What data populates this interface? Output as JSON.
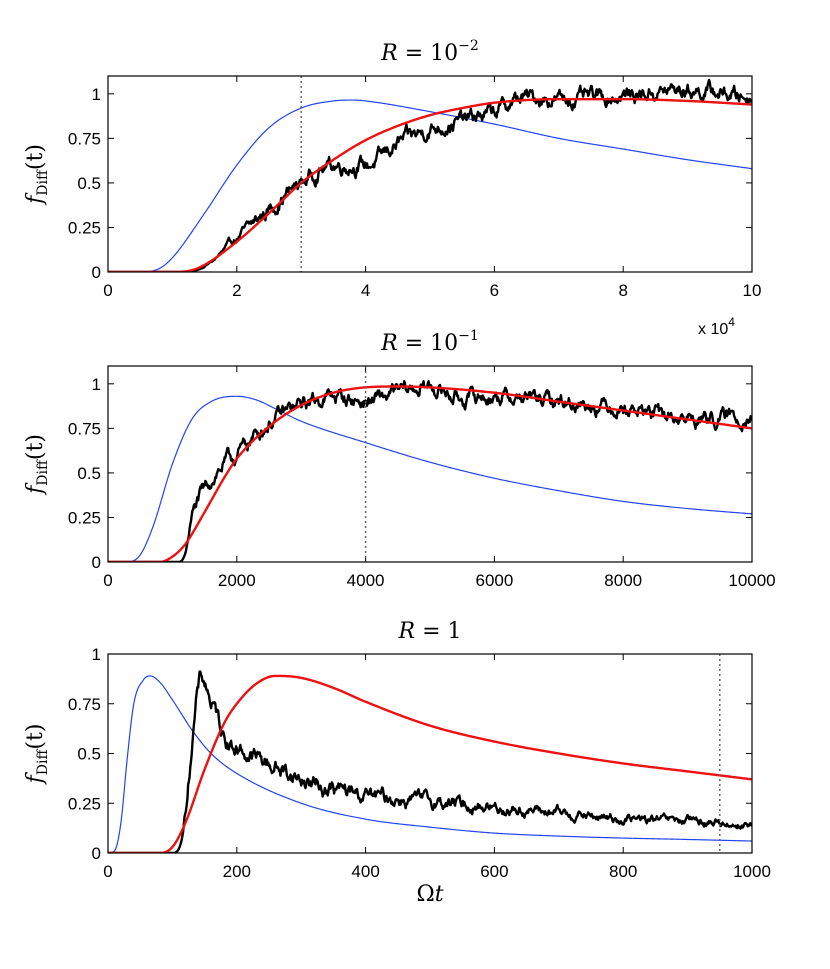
{
  "chart_data": [
    {
      "type": "line",
      "title": {
        "lhs": "R",
        "eq": " = 10",
        "sup": "−2"
      },
      "ylabel": {
        "f": "f",
        "sub": "Diff",
        "arg": "(t)"
      },
      "xlabel": "",
      "xlim": [
        0,
        100000
      ],
      "ylim": [
        0,
        1.1
      ],
      "xtick_values": [
        0,
        20000,
        40000,
        60000,
        80000,
        100000
      ],
      "xtick_labels": [
        "0",
        "2",
        "4",
        "6",
        "8",
        "10"
      ],
      "x_multiplier": {
        "prefix": "x 10",
        "sup": "4"
      },
      "ytick_values": [
        0,
        0.25,
        0.5,
        0.75,
        1
      ],
      "ytick_labels": [
        "0",
        "0.25",
        "0.5",
        "0.75",
        "1"
      ],
      "vline_x": 30000,
      "colors": {
        "simulation": "#000000",
        "model": "#ee1111",
        "reference": "#2244ee",
        "vline": "#666666"
      },
      "series": [
        {
          "name": "simulation",
          "kind": "noisy",
          "x": [
            0,
            12000,
            15000,
            20000,
            25000,
            30000,
            35000,
            40000,
            45000,
            50000,
            55000,
            60000,
            65000,
            70000,
            80000,
            90000,
            100000
          ],
          "y": [
            0,
            0,
            0.03,
            0.19,
            0.35,
            0.5,
            0.6,
            0.6,
            0.72,
            0.8,
            0.85,
            0.9,
            0.98,
            0.97,
            0.99,
            1.02,
            0.98
          ]
        },
        {
          "name": "model",
          "kind": "smooth",
          "x": [
            0,
            10000,
            13000,
            15000,
            20000,
            25000,
            30000,
            35000,
            40000,
            45000,
            50000,
            55000,
            60000,
            70000,
            80000,
            90000,
            100000
          ],
          "y": [
            0,
            0,
            0.01,
            0.04,
            0.17,
            0.33,
            0.5,
            0.63,
            0.74,
            0.82,
            0.88,
            0.92,
            0.95,
            0.97,
            0.97,
            0.96,
            0.94
          ]
        },
        {
          "name": "reference",
          "kind": "smooth",
          "x": [
            0,
            5000,
            8000,
            10000,
            15000,
            20000,
            25000,
            30000,
            35000,
            38000,
            40000,
            50000,
            60000,
            70000,
            80000,
            90000,
            100000
          ],
          "y": [
            0,
            0,
            0.02,
            0.08,
            0.33,
            0.6,
            0.81,
            0.92,
            0.96,
            0.965,
            0.96,
            0.9,
            0.83,
            0.75,
            0.69,
            0.63,
            0.58
          ]
        }
      ]
    },
    {
      "type": "line",
      "title": {
        "lhs": "R",
        "eq": " = 10",
        "sup": "−1"
      },
      "ylabel": {
        "f": "f",
        "sub": "Diff",
        "arg": "(t)"
      },
      "xlabel": "",
      "xlim": [
        0,
        10000
      ],
      "ylim": [
        0,
        1.1
      ],
      "xtick_values": [
        0,
        2000,
        4000,
        6000,
        8000,
        10000
      ],
      "xtick_labels": [
        "0",
        "2000",
        "4000",
        "6000",
        "8000",
        "10000"
      ],
      "ytick_values": [
        0,
        0.25,
        0.5,
        0.75,
        1
      ],
      "ytick_labels": [
        "0",
        "0.25",
        "0.5",
        "0.75",
        "1"
      ],
      "vline_x": 4000,
      "colors": {
        "simulation": "#000000",
        "model": "#ee1111",
        "reference": "#2244ee",
        "vline": "#666666"
      },
      "series": [
        {
          "name": "simulation",
          "kind": "noisy",
          "x": [
            0,
            1100,
            1200,
            1300,
            1500,
            1800,
            2000,
            2200,
            2500,
            3000,
            3500,
            4000,
            4500,
            5000,
            5500,
            6000,
            7000,
            8000,
            9000,
            10000
          ],
          "y": [
            0,
            0,
            0.05,
            0.25,
            0.4,
            0.55,
            0.6,
            0.68,
            0.78,
            0.88,
            0.93,
            0.9,
            0.95,
            0.98,
            0.92,
            0.93,
            0.9,
            0.87,
            0.8,
            0.82
          ]
        },
        {
          "name": "model",
          "kind": "smooth",
          "x": [
            0,
            800,
            1000,
            1200,
            1500,
            1800,
            2000,
            2500,
            3000,
            3500,
            4000,
            4500,
            5000,
            6000,
            7000,
            8000,
            9000,
            10000
          ],
          "y": [
            0,
            0,
            0.03,
            0.1,
            0.28,
            0.47,
            0.58,
            0.76,
            0.88,
            0.95,
            0.98,
            0.985,
            0.98,
            0.95,
            0.9,
            0.85,
            0.8,
            0.75
          ]
        },
        {
          "name": "reference",
          "kind": "smooth",
          "x": [
            0,
            300,
            500,
            700,
            1000,
            1300,
            1600,
            2000,
            2300,
            2600,
            3000,
            4000,
            5000,
            6000,
            7000,
            8000,
            9000,
            10000
          ],
          "y": [
            0,
            0,
            0.04,
            0.2,
            0.55,
            0.8,
            0.9,
            0.93,
            0.91,
            0.86,
            0.79,
            0.67,
            0.56,
            0.47,
            0.4,
            0.34,
            0.3,
            0.27
          ]
        }
      ]
    },
    {
      "type": "line",
      "title": {
        "lhs": "R",
        "eq": " = 1",
        "sup": ""
      },
      "ylabel": {
        "f": "f",
        "sub": "Diff",
        "arg": "(t)"
      },
      "xlabel": "Ωt",
      "xlim": [
        0,
        1000
      ],
      "ylim": [
        0,
        1
      ],
      "xtick_values": [
        0,
        200,
        400,
        600,
        800,
        1000
      ],
      "xtick_labels": [
        "0",
        "200",
        "400",
        "600",
        "800",
        "1000"
      ],
      "ytick_values": [
        0,
        0.25,
        0.5,
        0.75,
        1
      ],
      "ytick_labels": [
        "0",
        "0.25",
        "0.5",
        "0.75",
        "1"
      ],
      "vline_x": 950,
      "colors": {
        "simulation": "#000000",
        "model": "#ee1111",
        "reference": "#2244ee",
        "vline": "#666666"
      },
      "series": [
        {
          "name": "simulation",
          "kind": "noisy",
          "x": [
            0,
            100,
            110,
            120,
            130,
            140,
            145,
            150,
            160,
            170,
            180,
            200,
            250,
            300,
            350,
            400,
            500,
            600,
            700,
            800,
            900,
            1000
          ],
          "y": [
            0,
            0,
            0.02,
            0.2,
            0.55,
            0.82,
            0.88,
            0.86,
            0.76,
            0.68,
            0.6,
            0.53,
            0.45,
            0.37,
            0.32,
            0.29,
            0.26,
            0.23,
            0.2,
            0.17,
            0.16,
            0.14
          ]
        },
        {
          "name": "model",
          "kind": "smooth",
          "x": [
            0,
            80,
            100,
            120,
            150,
            180,
            200,
            230,
            260,
            300,
            350,
            400,
            500,
            600,
            700,
            800,
            900,
            1000
          ],
          "y": [
            0,
            0,
            0.03,
            0.15,
            0.42,
            0.65,
            0.75,
            0.85,
            0.89,
            0.88,
            0.83,
            0.76,
            0.64,
            0.56,
            0.5,
            0.45,
            0.41,
            0.37
          ]
        },
        {
          "name": "reference",
          "kind": "smooth",
          "x": [
            0,
            10,
            20,
            30,
            40,
            55,
            65,
            80,
            100,
            130,
            160,
            200,
            300,
            400,
            500,
            600,
            700,
            800,
            900,
            1000
          ],
          "y": [
            0,
            0.01,
            0.15,
            0.48,
            0.75,
            0.87,
            0.89,
            0.86,
            0.77,
            0.62,
            0.5,
            0.4,
            0.25,
            0.17,
            0.13,
            0.1,
            0.085,
            0.075,
            0.068,
            0.06
          ]
        }
      ]
    }
  ]
}
